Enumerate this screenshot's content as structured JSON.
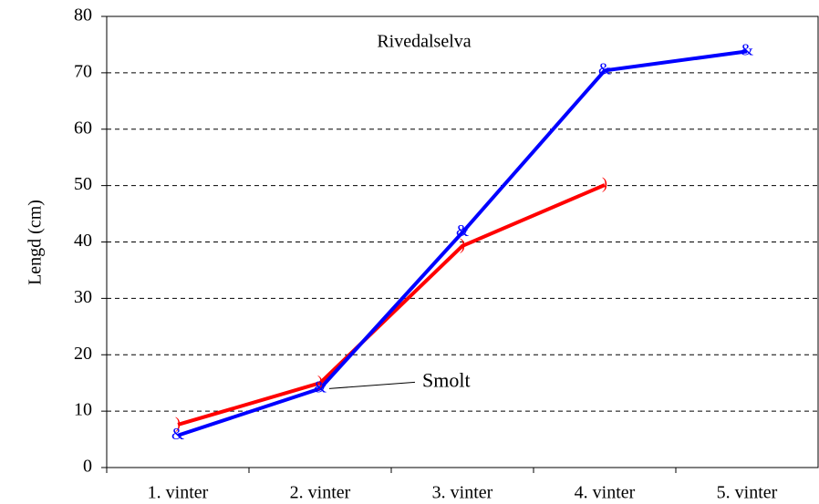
{
  "chart_data": {
    "type": "line",
    "title": "Rivedalselva",
    "y_label": "Lengd (cm)",
    "categories": [
      "1. vinter",
      "2. vinter",
      "3. vinter",
      "4. vinter",
      "5. vinter"
    ],
    "series": [
      {
        "color": "#ff0000",
        "marker": ")",
        "values": [
          7.6,
          15,
          39.3,
          50.1,
          null
        ]
      },
      {
        "color": "#0000ff",
        "marker": "&",
        "values": [
          5.7,
          14,
          41.7,
          70.4,
          73.8
        ]
      }
    ],
    "annotations": [
      {
        "text": "Smolt"
      }
    ],
    "ylim": [
      0,
      80
    ],
    "yticks": [
      0,
      10,
      20,
      30,
      40,
      50,
      60,
      70,
      80
    ],
    "grid": true
  }
}
